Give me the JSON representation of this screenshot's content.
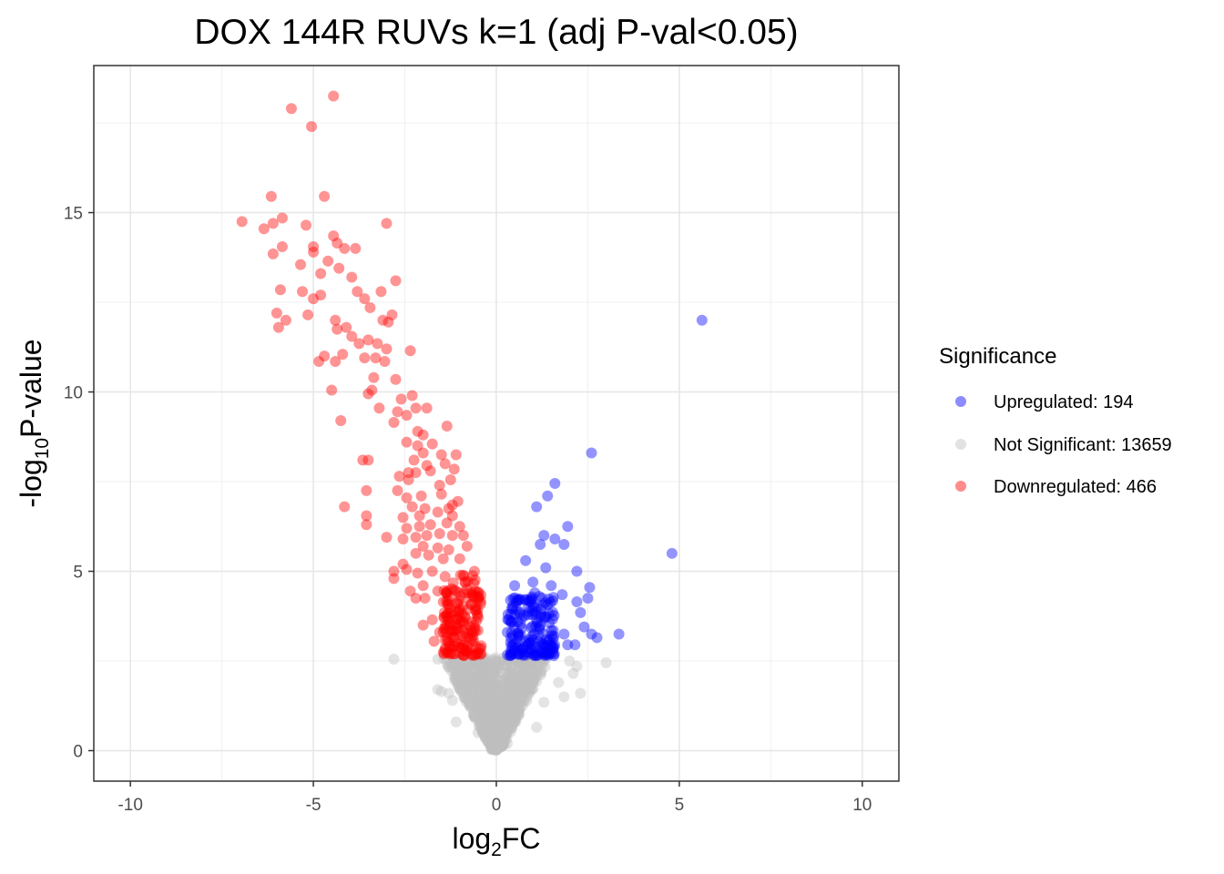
{
  "chart_data": {
    "type": "scatter",
    "title": "DOX 144R RUVs k=1 (adj P-val<0.05)",
    "xlabel": {
      "base": "log",
      "sub": "2",
      "rest": "FC"
    },
    "ylabel": {
      "base": "-log",
      "sub": "10",
      "rest": "P-value"
    },
    "xlim": [
      -11,
      11
    ],
    "ylim": [
      -0.85,
      19.1
    ],
    "x_ticks": [
      -10,
      -5,
      0,
      5,
      10
    ],
    "x_tick_labels": [
      "-10",
      "-5",
      "0",
      "5",
      "10"
    ],
    "y_ticks": [
      0,
      5,
      10,
      15
    ],
    "y_tick_labels": [
      "0",
      "5",
      "10",
      "15"
    ],
    "grid": true,
    "legend": {
      "title": "Significance",
      "placement": "right",
      "entries": [
        {
          "label": "Upregulated: 194",
          "color": "#0000FF"
        },
        {
          "label": "Not Significant: 13659",
          "color": "#BEBEBE"
        },
        {
          "label": "Downregulated: 466",
          "color": "#FF0000"
        }
      ]
    },
    "series": [
      {
        "name": "Upregulated: 194",
        "color": "#0000FF",
        "points": [
          [
            5.62,
            12.0
          ],
          [
            4.8,
            5.5
          ],
          [
            2.6,
            8.3
          ],
          [
            1.6,
            7.45
          ],
          [
            1.4,
            7.1
          ],
          [
            1.1,
            6.8
          ],
          [
            1.95,
            6.25
          ],
          [
            1.3,
            6.0
          ],
          [
            1.6,
            5.9
          ],
          [
            1.2,
            5.75
          ],
          [
            1.85,
            5.75
          ],
          [
            0.8,
            5.3
          ],
          [
            1.35,
            5.1
          ],
          [
            2.2,
            5.0
          ],
          [
            0.5,
            4.6
          ],
          [
            1.0,
            4.7
          ],
          [
            1.5,
            4.6
          ],
          [
            2.55,
            4.55
          ],
          [
            1.05,
            4.4
          ],
          [
            1.8,
            4.35
          ],
          [
            2.2,
            4.15
          ],
          [
            2.5,
            4.25
          ],
          [
            2.3,
            3.85
          ],
          [
            0.65,
            4.2
          ],
          [
            2.4,
            3.45
          ],
          [
            2.75,
            3.15
          ],
          [
            3.35,
            3.25
          ],
          [
            1.85,
            3.25
          ],
          [
            2.6,
            3.25
          ],
          [
            2.15,
            2.95
          ],
          [
            1.95,
            2.95
          ],
          [
            0.3,
            3.3
          ],
          [
            0.7,
            3.7
          ],
          [
            0.9,
            3.1
          ],
          [
            1.2,
            3.5
          ],
          [
            0.45,
            2.9
          ],
          [
            1.55,
            2.85
          ],
          [
            0.85,
            2.75
          ]
        ],
        "dense_cluster": {
          "x_range": [
            0.3,
            1.6
          ],
          "y_range": [
            2.65,
            4.3
          ]
        }
      },
      {
        "name": "Not Significant: 13659",
        "color": "#BEBEBE",
        "points": [
          [
            -2.8,
            2.55
          ],
          [
            3.0,
            2.45
          ],
          [
            2.2,
            2.35
          ],
          [
            -1.6,
            2.55
          ],
          [
            2.3,
            1.6
          ],
          [
            1.85,
            1.5
          ],
          [
            -1.5,
            1.65
          ],
          [
            -1.6,
            1.7
          ],
          [
            -1.2,
            1.4
          ],
          [
            1.3,
            1.35
          ],
          [
            2.1,
            2.15
          ],
          [
            2.0,
            2.5
          ],
          [
            1.7,
            1.9
          ],
          [
            -1.3,
            1.6
          ],
          [
            -1.1,
            0.8
          ],
          [
            1.1,
            0.65
          ],
          [
            0.6,
            1.0
          ],
          [
            -0.5,
            0.5
          ],
          [
            0.3,
            0.2
          ],
          [
            -0.2,
            0.3
          ]
        ],
        "dense_cluster": {
          "x_range": [
            -1.6,
            1.6
          ],
          "y_range": [
            0.0,
            2.6
          ]
        }
      },
      {
        "name": "Downregulated: 466",
        "color": "#FF0000",
        "points": [
          [
            -4.45,
            18.25
          ],
          [
            -5.6,
            17.9
          ],
          [
            -5.05,
            17.4
          ],
          [
            -6.15,
            15.45
          ],
          [
            -4.7,
            15.45
          ],
          [
            -6.95,
            14.75
          ],
          [
            -6.35,
            14.55
          ],
          [
            -6.1,
            14.7
          ],
          [
            -5.85,
            14.85
          ],
          [
            -5.2,
            14.65
          ],
          [
            -3.0,
            14.7
          ],
          [
            -5.0,
            14.05
          ],
          [
            -5.0,
            13.9
          ],
          [
            -4.45,
            14.35
          ],
          [
            -4.35,
            14.15
          ],
          [
            -5.85,
            14.05
          ],
          [
            -6.1,
            13.85
          ],
          [
            -4.15,
            14.0
          ],
          [
            -3.85,
            14.0
          ],
          [
            -5.35,
            13.55
          ],
          [
            -4.6,
            13.65
          ],
          [
            -4.8,
            13.3
          ],
          [
            -4.3,
            13.45
          ],
          [
            -3.95,
            13.2
          ],
          [
            -2.75,
            13.1
          ],
          [
            -5.9,
            12.85
          ],
          [
            -5.3,
            12.8
          ],
          [
            -4.8,
            12.7
          ],
          [
            -5.0,
            12.6
          ],
          [
            -3.8,
            12.8
          ],
          [
            -3.6,
            12.6
          ],
          [
            -3.45,
            12.35
          ],
          [
            -3.15,
            12.8
          ],
          [
            -2.85,
            12.15
          ],
          [
            -5.15,
            12.15
          ],
          [
            -5.75,
            12.0
          ],
          [
            -6.0,
            12.2
          ],
          [
            -5.95,
            11.8
          ],
          [
            -4.4,
            12.0
          ],
          [
            -4.35,
            11.75
          ],
          [
            -4.1,
            11.8
          ],
          [
            -3.95,
            11.55
          ],
          [
            -3.5,
            11.45
          ],
          [
            -3.1,
            12.0
          ],
          [
            -2.95,
            11.95
          ],
          [
            -3.75,
            11.35
          ],
          [
            -3.25,
            11.35
          ],
          [
            -3.0,
            11.2
          ],
          [
            -2.35,
            11.15
          ],
          [
            -4.7,
            11.0
          ],
          [
            -4.85,
            10.85
          ],
          [
            -4.4,
            10.85
          ],
          [
            -4.2,
            11.05
          ],
          [
            -3.6,
            10.95
          ],
          [
            -3.3,
            10.95
          ],
          [
            -3.05,
            10.85
          ],
          [
            -3.35,
            10.4
          ],
          [
            -2.75,
            10.35
          ],
          [
            -4.5,
            10.05
          ],
          [
            -3.4,
            10.05
          ],
          [
            -3.5,
            9.95
          ],
          [
            -2.6,
            9.8
          ],
          [
            -2.3,
            9.9
          ],
          [
            -2.2,
            9.55
          ],
          [
            -3.2,
            9.55
          ],
          [
            -2.7,
            9.45
          ],
          [
            -2.45,
            9.35
          ],
          [
            -1.9,
            9.55
          ],
          [
            -4.25,
            9.2
          ],
          [
            -2.8,
            9.15
          ],
          [
            -1.35,
            9.05
          ],
          [
            -2.15,
            8.9
          ],
          [
            -2.0,
            8.8
          ],
          [
            -2.45,
            8.6
          ],
          [
            -1.75,
            8.55
          ],
          [
            -2.15,
            8.5
          ],
          [
            -2.0,
            8.3
          ],
          [
            -1.5,
            8.25
          ],
          [
            -1.1,
            8.25
          ],
          [
            -3.5,
            8.1
          ],
          [
            -3.65,
            8.1
          ],
          [
            -2.25,
            8.1
          ],
          [
            -1.9,
            7.95
          ],
          [
            -1.4,
            8.0
          ],
          [
            -1.15,
            7.85
          ],
          [
            -2.4,
            7.75
          ],
          [
            -2.2,
            7.75
          ],
          [
            -1.8,
            7.8
          ],
          [
            -1.25,
            7.55
          ],
          [
            -2.4,
            7.55
          ],
          [
            -2.65,
            7.65
          ],
          [
            -1.55,
            7.4
          ],
          [
            -3.55,
            7.25
          ],
          [
            -2.7,
            7.25
          ],
          [
            -2.45,
            7.05
          ],
          [
            -2.05,
            7.1
          ],
          [
            -1.5,
            7.15
          ],
          [
            -1.05,
            6.95
          ],
          [
            -2.3,
            6.8
          ],
          [
            -1.95,
            6.75
          ],
          [
            -1.2,
            6.85
          ],
          [
            -1.3,
            6.75
          ],
          [
            -4.15,
            6.8
          ],
          [
            -2.55,
            6.5
          ],
          [
            -2.1,
            6.55
          ],
          [
            -1.6,
            6.65
          ],
          [
            -1.2,
            6.55
          ],
          [
            -3.55,
            6.55
          ],
          [
            -3.55,
            6.3
          ],
          [
            -2.45,
            6.2
          ],
          [
            -2.1,
            6.25
          ],
          [
            -1.8,
            6.3
          ],
          [
            -1.35,
            6.35
          ],
          [
            -1.0,
            6.25
          ],
          [
            -3.0,
            5.95
          ],
          [
            -2.55,
            5.9
          ],
          [
            -2.2,
            5.95
          ],
          [
            -1.9,
            6.0
          ],
          [
            -1.55,
            6.05
          ],
          [
            -1.2,
            6.0
          ],
          [
            -0.9,
            6.0
          ],
          [
            -2.0,
            5.7
          ],
          [
            -1.6,
            5.65
          ],
          [
            -1.3,
            5.6
          ],
          [
            -0.8,
            5.7
          ],
          [
            -2.2,
            5.5
          ],
          [
            -1.85,
            5.45
          ],
          [
            -1.45,
            5.35
          ],
          [
            -1.0,
            5.35
          ],
          [
            -2.55,
            5.2
          ],
          [
            -2.45,
            5.05
          ],
          [
            -2.8,
            5.0
          ],
          [
            -2.15,
            4.95
          ],
          [
            -1.75,
            5.0
          ],
          [
            -1.4,
            4.85
          ],
          [
            -0.6,
            5.0
          ],
          [
            -2.8,
            4.8
          ],
          [
            -2.0,
            4.6
          ],
          [
            -2.35,
            4.45
          ],
          [
            -1.6,
            4.45
          ],
          [
            -1.95,
            4.25
          ],
          [
            -2.2,
            4.25
          ],
          [
            -1.45,
            4.15
          ],
          [
            -0.6,
            4.3
          ],
          [
            -1.25,
            3.95
          ],
          [
            -1.75,
            3.65
          ],
          [
            -2.0,
            3.5
          ],
          [
            -1.55,
            3.3
          ],
          [
            -1.7,
            3.05
          ],
          [
            -1.35,
            3.15
          ],
          [
            -0.5,
            3.35
          ],
          [
            -0.55,
            2.9
          ],
          [
            -0.8,
            2.75
          ],
          [
            -1.4,
            2.85
          ]
        ],
        "dense_cluster": {
          "x_range": [
            -1.45,
            -0.4
          ],
          "y_range": [
            2.65,
            4.9
          ]
        }
      }
    ]
  }
}
